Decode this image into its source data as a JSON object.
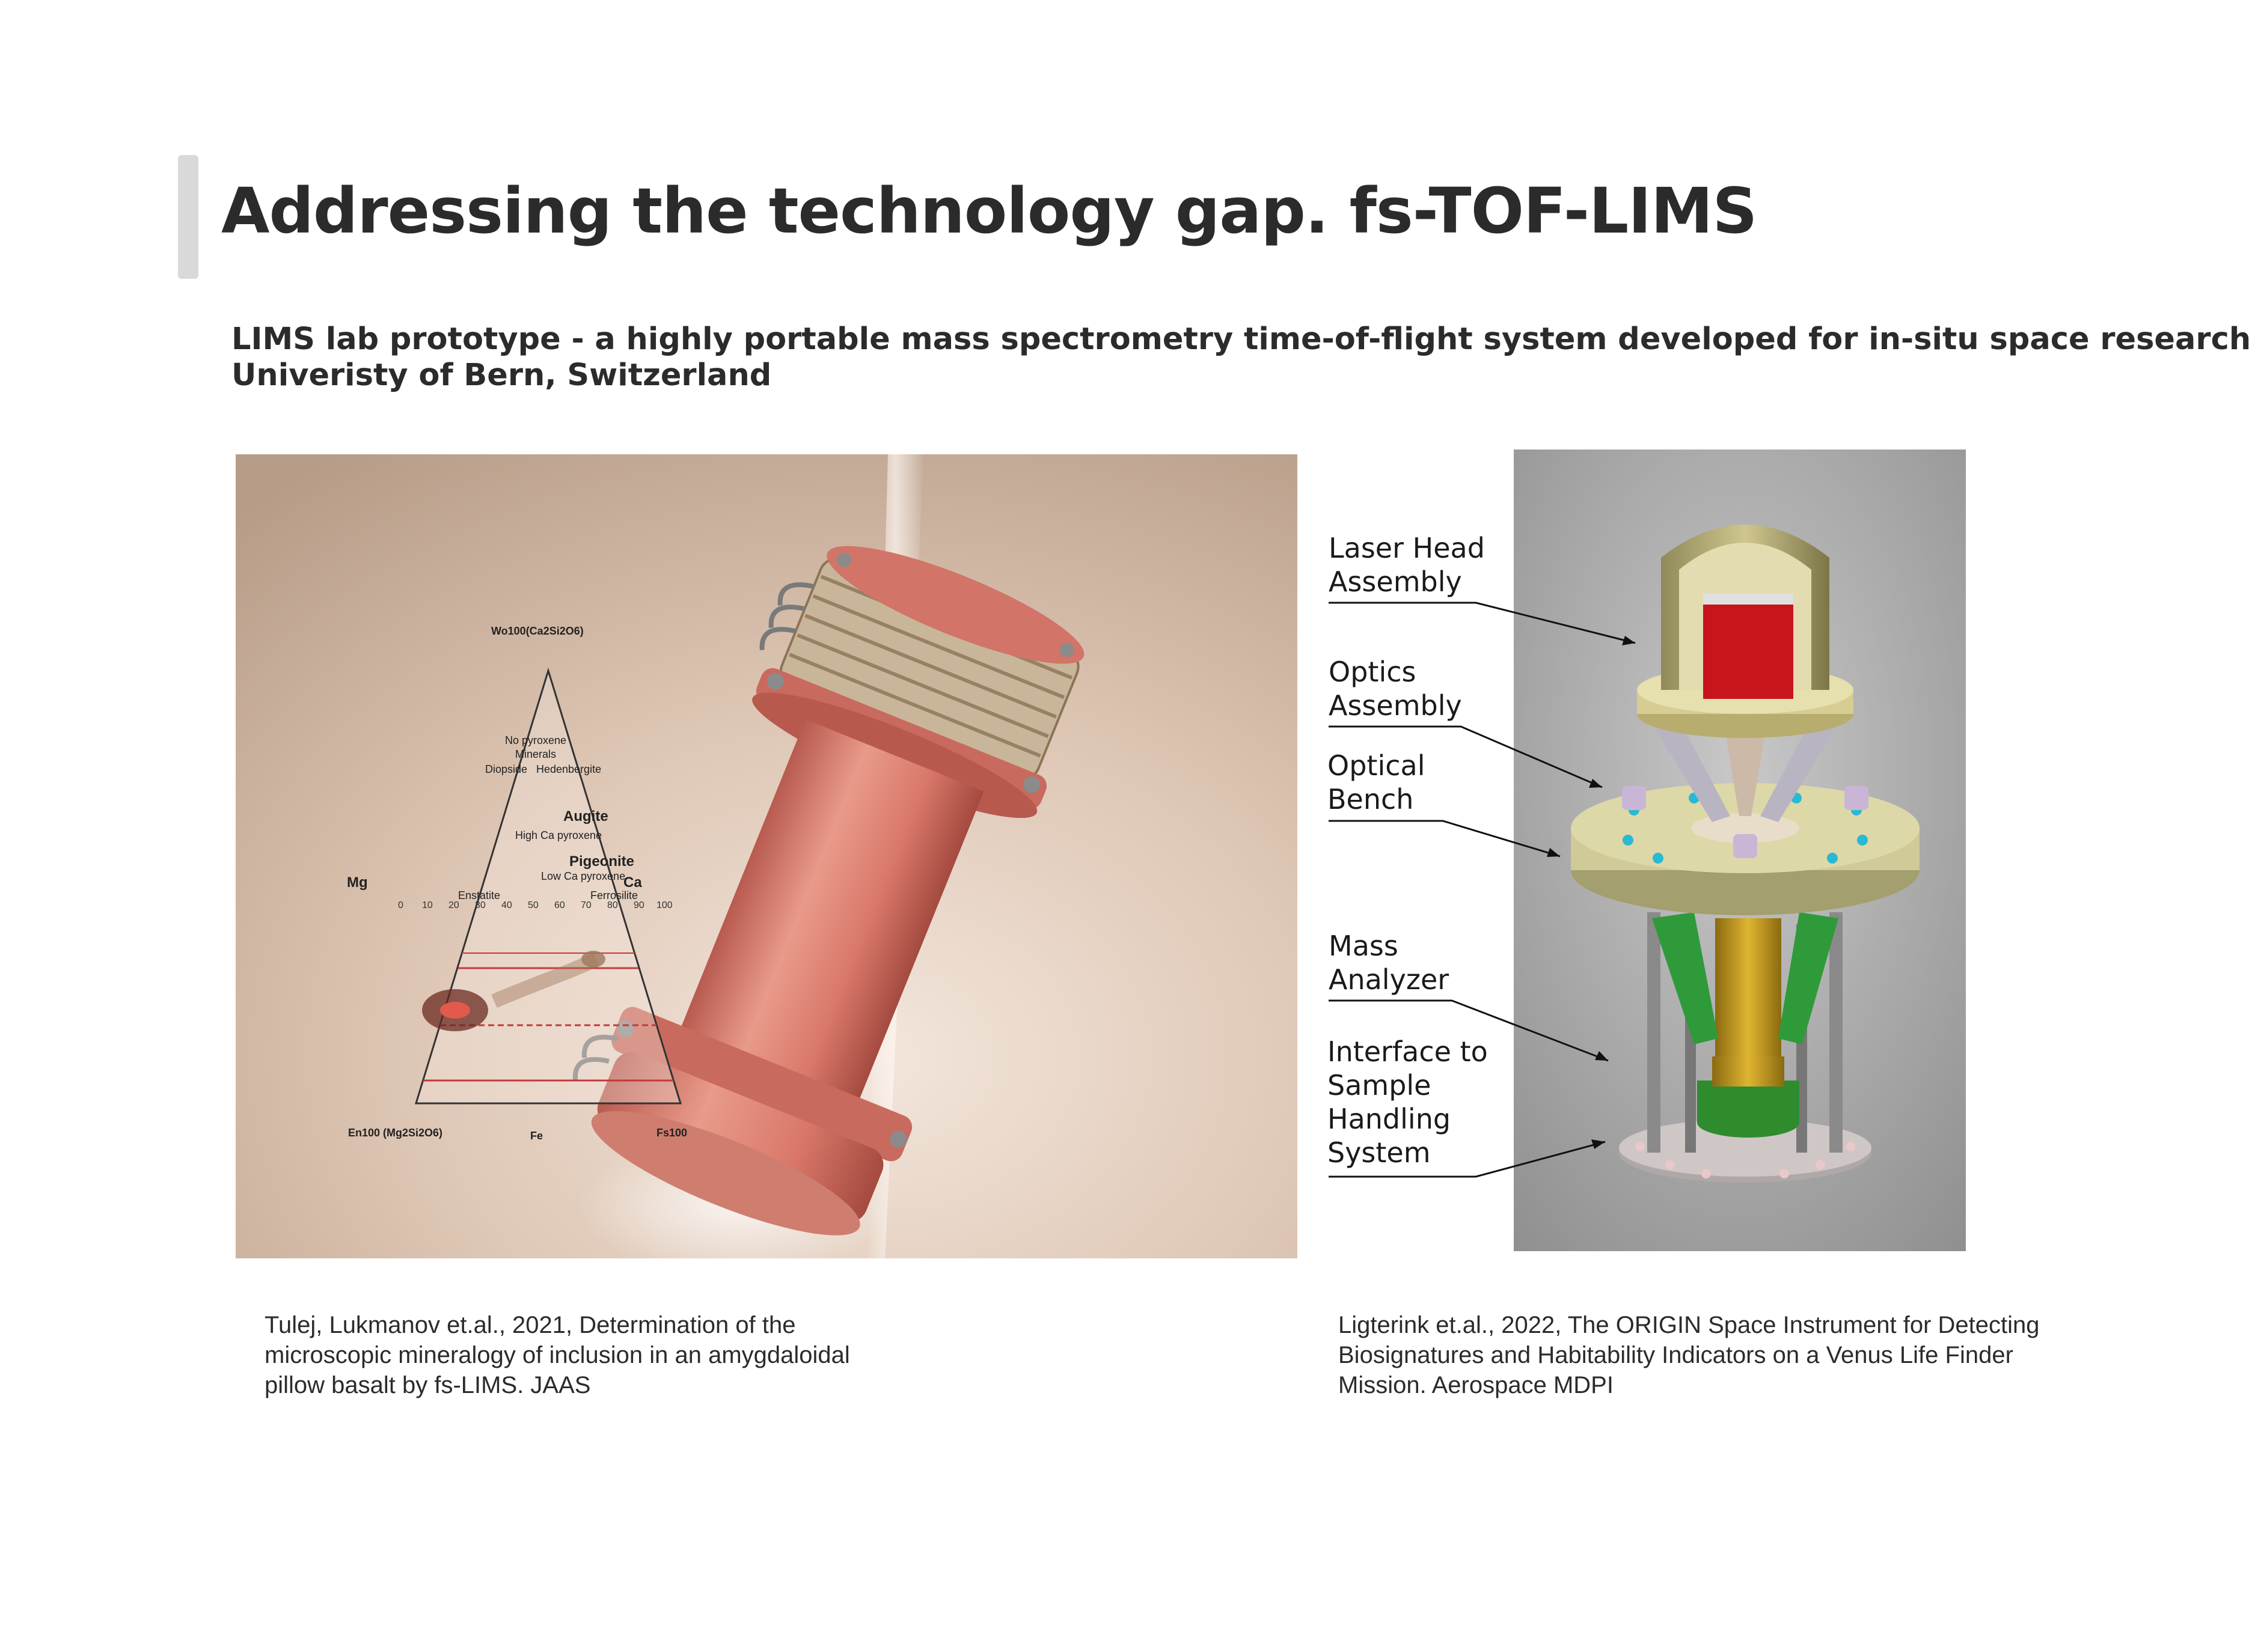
{
  "title": "Addressing the technology gap. fs-TOF-LIMS",
  "subtitle": {
    "line1": "LIMS lab prototype - a highly portable mass spectrometry time-of-flight system developed for in-situ space research",
    "line2": "Univeristy of Bern, Switzerland"
  },
  "left_figure": {
    "ternary": {
      "apex_top": "Wo100(Ca2Si2O6)",
      "left_corner": "En100 (Mg2Si2O6)",
      "right_corner": "Fs100",
      "bottom_mid": "Fe",
      "left_side": "Mg",
      "right_side": "Ca",
      "regions": [
        "No pyroxene",
        "Minerals",
        "Diopside",
        "Hedenbergite",
        "Augite",
        "High Ca pyroxene",
        "Pigeonite",
        "Low Ca pyroxene",
        "Enstatite",
        "Ferrosilite"
      ],
      "ticks": [
        "0",
        "10",
        "20",
        "30",
        "40",
        "50",
        "60",
        "70",
        "80",
        "90",
        "100"
      ]
    }
  },
  "right_figure": {
    "labels": {
      "laser_head": [
        "Laser Head",
        "Assembly"
      ],
      "optics": [
        "Optics",
        "Assembly"
      ],
      "bench": [
        "Optical",
        "Bench"
      ],
      "mass": [
        "Mass",
        "Analyzer"
      ],
      "interface": [
        "Interface to",
        "Sample",
        "Handling",
        "System"
      ]
    }
  },
  "captions": {
    "left": [
      "Tulej, Lukmanov et.al., 2021, Determination of the",
      "microscopic mineralogy of inclusion in an amygdaloidal",
      "pillow basalt by fs-LIMS. JAAS"
    ],
    "right": [
      "Ligterink et.al., 2022, The ORIGIN Space Instrument for Detecting",
      "Biosignatures and Habitability Indicators on a Venus Life Finder",
      "Mission. Aerospace MDPI"
    ]
  },
  "colors": {
    "title_bar": "#d9d9d9",
    "text": "#2b2b2b",
    "instrument_pink": "#d9786a",
    "render_gray": "#a9a9a9",
    "laser_red": "#c8141b",
    "gold": "#c9a21f"
  }
}
